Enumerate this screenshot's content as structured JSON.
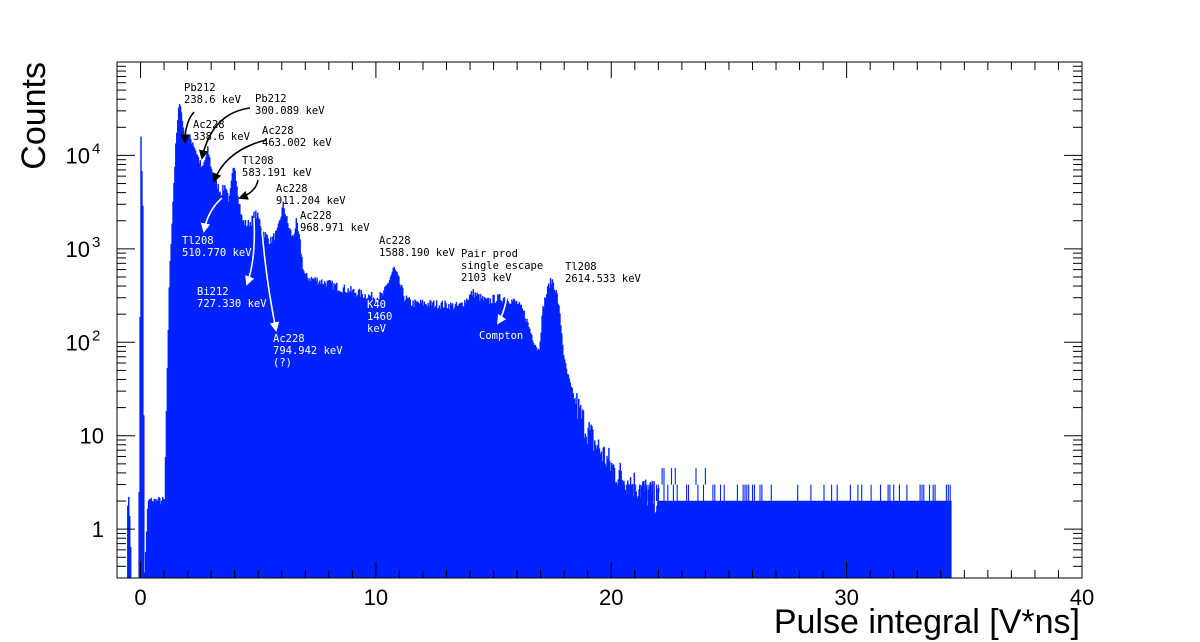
{
  "chart_data": {
    "type": "histogram",
    "title": "",
    "xlabel": "Pulse integral [V*ns]",
    "ylabel": "Counts",
    "xlim": [
      -1,
      40
    ],
    "ylim": [
      0.3,
      100000
    ],
    "y_scale": "log",
    "grid": false,
    "legend": "none",
    "fill_color": "#0022ff",
    "x_ticks": [
      {
        "value": 0,
        "label": "0"
      },
      {
        "value": 10,
        "label": "10"
      },
      {
        "value": 20,
        "label": "20"
      },
      {
        "value": 30,
        "label": "30"
      },
      {
        "value": 40,
        "label": "40"
      }
    ],
    "y_ticks": [
      {
        "value": 1,
        "label": "1"
      },
      {
        "value": 10,
        "label": "10"
      },
      {
        "value": 100,
        "label": "10",
        "exp": "2"
      },
      {
        "value": 1000,
        "label": "10",
        "exp": "3"
      },
      {
        "value": 10000,
        "label": "10",
        "exp": "4"
      }
    ],
    "envelope": [
      [
        -0.6,
        2
      ],
      [
        -0.5,
        2
      ],
      [
        -0.4,
        0.3
      ],
      [
        -0.1,
        0.3
      ],
      [
        0.0,
        15000
      ],
      [
        0.08,
        3000
      ],
      [
        0.15,
        0.3
      ],
      [
        0.3,
        2
      ],
      [
        0.6,
        2
      ],
      [
        0.8,
        2
      ],
      [
        1.0,
        2
      ],
      [
        1.2,
        400
      ],
      [
        1.35,
        3000
      ],
      [
        1.5,
        15000
      ],
      [
        1.65,
        42000
      ],
      [
        1.75,
        24000
      ],
      [
        1.85,
        17000
      ],
      [
        2.0,
        16000
      ],
      [
        2.2,
        14000
      ],
      [
        2.4,
        10000
      ],
      [
        2.6,
        7000
      ],
      [
        2.85,
        11500
      ],
      [
        3.0,
        7000
      ],
      [
        3.2,
        5000
      ],
      [
        3.4,
        4000
      ],
      [
        3.6,
        4800
      ],
      [
        3.75,
        3200
      ],
      [
        3.9,
        6500
      ],
      [
        4.0,
        7200
      ],
      [
        4.15,
        3500
      ],
      [
        4.3,
        2000
      ],
      [
        4.5,
        1800
      ],
      [
        4.7,
        2000
      ],
      [
        4.85,
        2400
      ],
      [
        5.0,
        2100
      ],
      [
        5.2,
        1500
      ],
      [
        5.5,
        1200
      ],
      [
        5.8,
        1500
      ],
      [
        6.05,
        3000
      ],
      [
        6.25,
        1800
      ],
      [
        6.45,
        1300
      ],
      [
        6.6,
        1900
      ],
      [
        6.75,
        1200
      ],
      [
        6.9,
        600
      ],
      [
        7.0,
        500
      ],
      [
        7.5,
        460
      ],
      [
        8.0,
        420
      ],
      [
        8.5,
        380
      ],
      [
        9.0,
        350
      ],
      [
        9.5,
        320
      ],
      [
        10.0,
        300
      ],
      [
        10.3,
        320
      ],
      [
        10.6,
        500
      ],
      [
        10.75,
        620
      ],
      [
        10.9,
        500
      ],
      [
        11.2,
        300
      ],
      [
        11.5,
        260
      ],
      [
        12.0,
        260
      ],
      [
        12.5,
        255
      ],
      [
        13.0,
        250
      ],
      [
        13.5,
        240
      ],
      [
        13.8,
        280
      ],
      [
        14.1,
        340
      ],
      [
        14.4,
        300
      ],
      [
        14.7,
        270
      ],
      [
        15.0,
        290
      ],
      [
        15.5,
        300
      ],
      [
        16.0,
        260
      ],
      [
        16.3,
        200
      ],
      [
        16.6,
        120
      ],
      [
        16.9,
        80
      ],
      [
        17.1,
        250
      ],
      [
        17.35,
        420
      ],
      [
        17.5,
        460
      ],
      [
        17.7,
        300
      ],
      [
        17.85,
        150
      ],
      [
        18.0,
        60
      ],
      [
        18.3,
        30
      ],
      [
        18.7,
        16
      ],
      [
        19.2,
        9
      ],
      [
        19.7,
        6
      ],
      [
        20.2,
        4
      ],
      [
        21.0,
        3
      ],
      [
        22.0,
        2
      ],
      [
        26.0,
        2
      ],
      [
        30.0,
        2
      ],
      [
        34.4,
        2
      ],
      [
        34.6,
        0.3
      ]
    ],
    "annotations": [
      {
        "lines": [
          "Pb212",
          "238.6 keV"
        ],
        "color": "black"
      },
      {
        "lines": [
          "Pb212",
          "300.089 keV"
        ],
        "color": "black"
      },
      {
        "lines": [
          "Ac228",
          "338.6 keV"
        ],
        "color": "black"
      },
      {
        "lines": [
          "Ac228",
          "463.002 keV"
        ],
        "color": "black"
      },
      {
        "lines": [
          "Tl208",
          "583.191 keV"
        ],
        "color": "black"
      },
      {
        "lines": [
          "Ac228",
          "911.204 keV"
        ],
        "color": "black"
      },
      {
        "lines": [
          "Ac228",
          "968.971 keV"
        ],
        "color": "black"
      },
      {
        "lines": [
          "Tl208",
          "510.770 keV"
        ],
        "color": "white"
      },
      {
        "lines": [
          "Bi212",
          "727.330 keV"
        ],
        "color": "white"
      },
      {
        "lines": [
          "Ac228",
          "794.942 keV",
          "(?)"
        ],
        "color": "white"
      },
      {
        "lines": [
          "Ac228",
          "1588.190 keV"
        ],
        "color": "black"
      },
      {
        "lines": [
          "K40",
          "1460",
          "keV"
        ],
        "color": "white"
      },
      {
        "lines": [
          "Pair prod",
          "single escape",
          "2103 keV"
        ],
        "color": "black"
      },
      {
        "lines": [
          "Compton"
        ],
        "color": "white"
      },
      {
        "lines": [
          "Tl208",
          "2614.533 keV"
        ],
        "color": "black"
      }
    ]
  }
}
